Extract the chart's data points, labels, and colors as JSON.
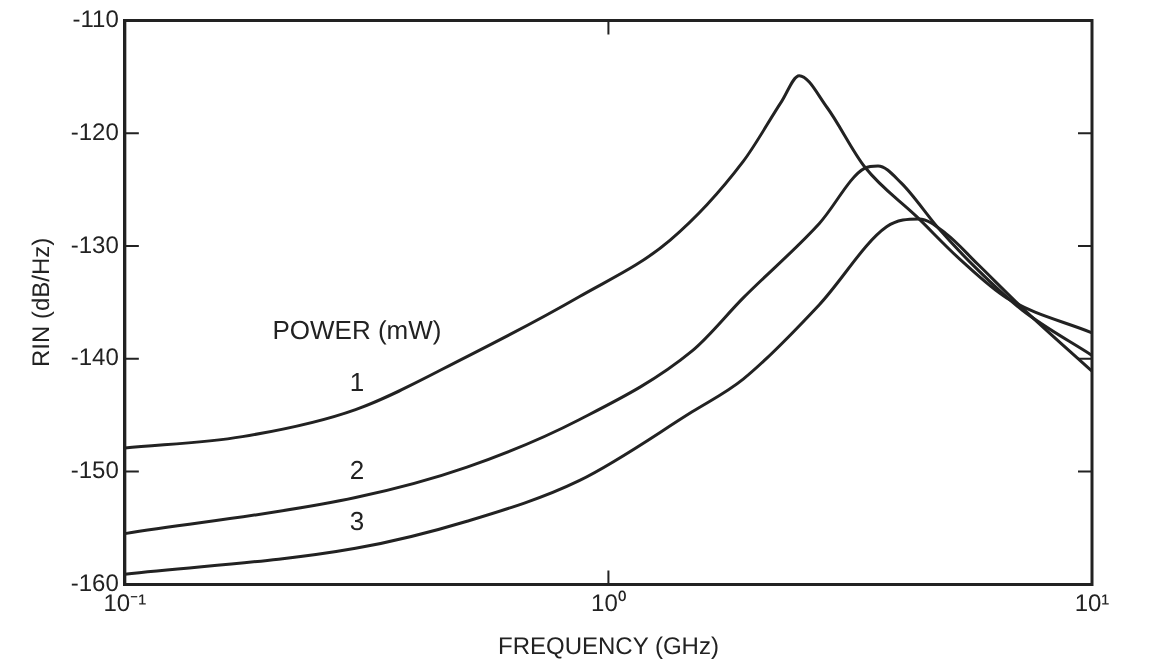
{
  "chart_data": {
    "type": "line",
    "xlabel": "FREQUENCY (GHz)",
    "ylabel": "RIN (dB/Hz)",
    "legend_title": "POWER (mW)",
    "log": "x",
    "xlim": [
      0.1,
      10
    ],
    "ylim": [
      -160,
      -110
    ],
    "xticks": [
      {
        "value": 0.1,
        "label": "10⁻¹"
      },
      {
        "value": 1,
        "label": "10⁰"
      },
      {
        "value": 10,
        "label": "10¹"
      }
    ],
    "yticks": [
      -160,
      -150,
      -140,
      -130,
      -120,
      -110
    ],
    "grid": false,
    "legend": false,
    "marker": "none",
    "line_style": "solid",
    "series": [
      {
        "name": "1",
        "color": "#222222",
        "x": [
          0.1,
          0.175,
          0.3,
          0.51,
          0.87,
          1.34,
          1.9,
          2.28,
          2.48,
          2.83,
          3.39,
          4.34,
          5.37,
          6.66,
          10
        ],
        "values": [
          -147.9,
          -146.9,
          -144.5,
          -139.8,
          -134.5,
          -129.5,
          -122.5,
          -117.2,
          -114.9,
          -117.7,
          -123,
          -127.4,
          -131.3,
          -134.6,
          -137.7
        ]
      },
      {
        "name": "2",
        "color": "#222222",
        "x": [
          0.1,
          0.3,
          0.51,
          0.87,
          1.49,
          1.9,
          2.73,
          3.39,
          3.61,
          4.03,
          4.83,
          5.8,
          7.18,
          10
        ],
        "values": [
          -155.5,
          -152.3,
          -149.6,
          -145.4,
          -139.3,
          -134.6,
          -128,
          -123.1,
          -122.9,
          -124.4,
          -128.5,
          -132.1,
          -135.7,
          -139.7
        ]
      },
      {
        "name": "3",
        "color": "#222222",
        "x": [
          0.1,
          0.3,
          0.51,
          0.87,
          1.49,
          1.9,
          2.73,
          3.76,
          4.39,
          4.99,
          5.8,
          7.18,
          10
        ],
        "values": [
          -159.1,
          -156.8,
          -154.4,
          -150.8,
          -144.7,
          -141.8,
          -135.2,
          -128.3,
          -127.6,
          -128.9,
          -131.6,
          -135.5,
          -141.1
        ]
      }
    ]
  }
}
